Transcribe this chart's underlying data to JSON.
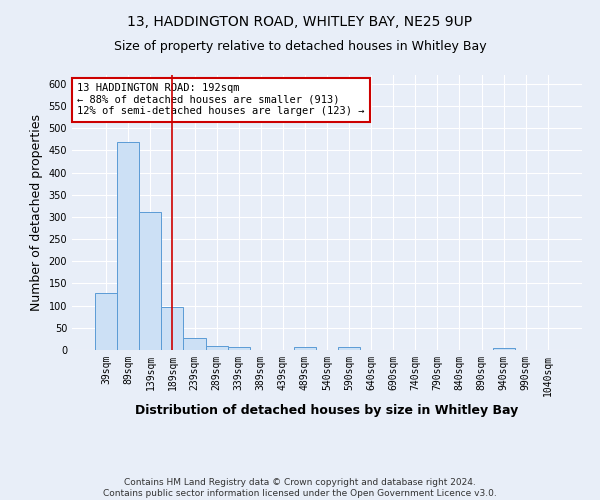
{
  "title_line1": "13, HADDINGTON ROAD, WHITLEY BAY, NE25 9UP",
  "title_line2": "Size of property relative to detached houses in Whitley Bay",
  "xlabel": "Distribution of detached houses by size in Whitley Bay",
  "ylabel": "Number of detached properties",
  "footer_line1": "Contains HM Land Registry data © Crown copyright and database right 2024.",
  "footer_line2": "Contains public sector information licensed under the Open Government Licence v3.0.",
  "bar_labels": [
    "39sqm",
    "89sqm",
    "139sqm",
    "189sqm",
    "239sqm",
    "289sqm",
    "339sqm",
    "389sqm",
    "439sqm",
    "489sqm",
    "540sqm",
    "590sqm",
    "640sqm",
    "690sqm",
    "740sqm",
    "790sqm",
    "840sqm",
    "890sqm",
    "940sqm",
    "990sqm",
    "1040sqm"
  ],
  "bar_values": [
    128,
    470,
    311,
    96,
    26,
    10,
    7,
    0,
    0,
    6,
    0,
    6,
    0,
    0,
    0,
    0,
    0,
    0,
    5,
    0,
    0
  ],
  "bar_color": "#cce0f5",
  "bar_edge_color": "#5b9bd5",
  "vline_color": "#cc0000",
  "vline_x": 3.0,
  "annotation_text": "13 HADDINGTON ROAD: 192sqm\n← 88% of detached houses are smaller (913)\n12% of semi-detached houses are larger (123) →",
  "annotation_box_color": "white",
  "annotation_box_edge_color": "#cc0000",
  "ylim": [
    0,
    620
  ],
  "yticks": [
    0,
    50,
    100,
    150,
    200,
    250,
    300,
    350,
    400,
    450,
    500,
    550,
    600
  ],
  "bg_color": "#e8eef8",
  "grid_color": "white",
  "title_fontsize": 10,
  "subtitle_fontsize": 9,
  "axis_label_fontsize": 9,
  "tick_fontsize": 7,
  "footer_fontsize": 6.5,
  "annotation_fontsize": 7.5
}
